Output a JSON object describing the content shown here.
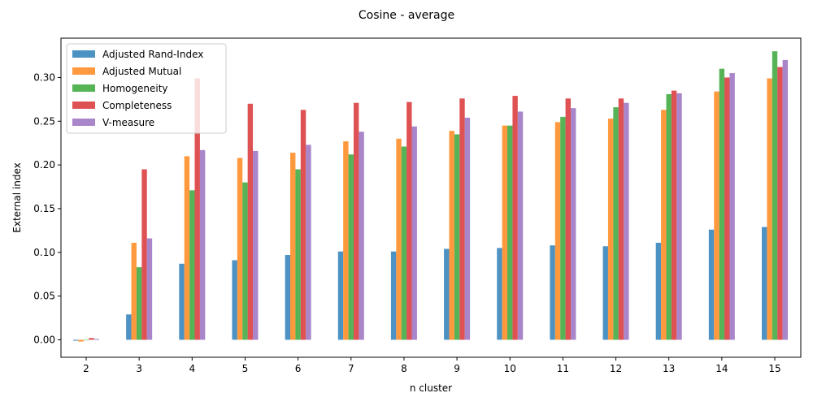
{
  "chart_data": {
    "type": "bar",
    "title": "Cosine - average",
    "xlabel": "n cluster",
    "ylabel": "External index",
    "ylim": [
      -0.02,
      0.345
    ],
    "yticks": [
      "0.00",
      "0.05",
      "0.10",
      "0.15",
      "0.20",
      "0.25",
      "0.30"
    ],
    "ytick_values": [
      0,
      0.05,
      0.1,
      0.15,
      0.2,
      0.25,
      0.3
    ],
    "categories": [
      "2",
      "3",
      "4",
      "5",
      "6",
      "7",
      "8",
      "9",
      "10",
      "11",
      "12",
      "13",
      "14",
      "15"
    ],
    "legend_position": "top-left",
    "grid": false,
    "series": [
      {
        "name": "Adjusted Rand-Index",
        "color": "#1f77b4",
        "values": [
          -0.001,
          0.029,
          0.087,
          0.091,
          0.097,
          0.101,
          0.101,
          0.104,
          0.105,
          0.108,
          0.107,
          0.111,
          0.126,
          0.129
        ]
      },
      {
        "name": "Adjusted Mutual",
        "color": "#ff7f0e",
        "values": [
          -0.002,
          0.111,
          0.21,
          0.208,
          0.214,
          0.227,
          0.23,
          0.239,
          0.245,
          0.249,
          0.253,
          0.263,
          0.284,
          0.299
        ]
      },
      {
        "name": "Homogeneity",
        "color": "#2ca02c",
        "values": [
          0.0,
          0.083,
          0.171,
          0.18,
          0.195,
          0.212,
          0.221,
          0.235,
          0.245,
          0.255,
          0.266,
          0.281,
          0.31,
          0.33
        ]
      },
      {
        "name": "Completeness",
        "color": "#d62728",
        "values": [
          0.002,
          0.195,
          0.299,
          0.27,
          0.263,
          0.271,
          0.272,
          0.276,
          0.279,
          0.276,
          0.276,
          0.285,
          0.3,
          0.312
        ]
      },
      {
        "name": "V-measure",
        "color": "#9467bd",
        "values": [
          0.001,
          0.116,
          0.217,
          0.216,
          0.223,
          0.238,
          0.244,
          0.254,
          0.261,
          0.265,
          0.271,
          0.282,
          0.305,
          0.32
        ]
      }
    ]
  }
}
